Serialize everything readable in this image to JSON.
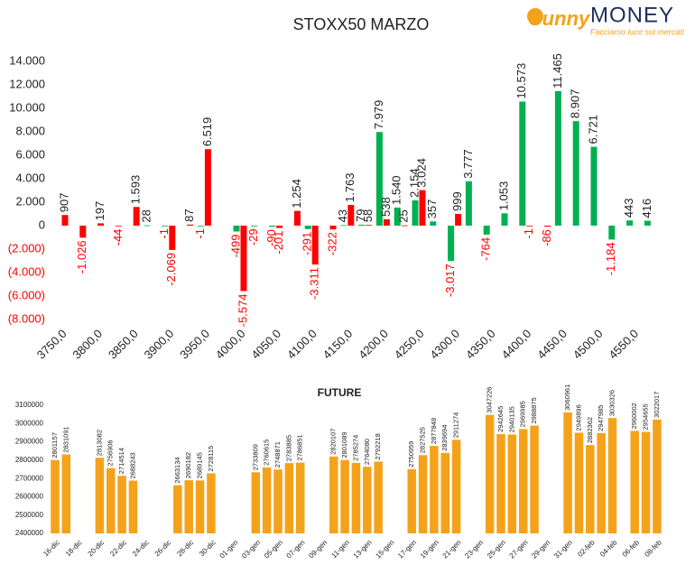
{
  "logo": {
    "brand": "Sunny",
    "name": "MONEY",
    "tagline": "Facciamo luce sui mercati"
  },
  "chart_data": [
    {
      "type": "bar",
      "title": "STOXX50 MARZO",
      "categories": [
        "3750,0",
        null,
        "3800,0",
        null,
        "3850,0",
        null,
        "3900,0",
        null,
        "3950,0",
        null,
        "4000,0",
        null,
        "4050,0",
        null,
        "4100,0",
        null,
        "4150,0",
        null,
        "4200,0",
        null,
        "4250,0",
        null,
        "4300,0",
        null,
        "4350,0",
        null,
        "4400,0",
        null,
        "4450,0",
        null,
        "4500,0",
        null,
        "4550,0",
        null
      ],
      "series": [
        {
          "name": "green",
          "color": "#00b050",
          "values": [
            null,
            null,
            null,
            null,
            null,
            28,
            -1,
            null,
            -1,
            null,
            -499,
            -29,
            -90,
            null,
            -291,
            null,
            43,
            79,
            7979,
            1540,
            2154,
            357,
            -3017,
            3777,
            -764,
            1053,
            10573,
            null,
            11465,
            8907,
            6721,
            -1184,
            443,
            416
          ],
          "value_labels": [
            null,
            null,
            null,
            null,
            null,
            "28",
            "-1",
            null,
            "-1",
            null,
            "-499",
            "-29",
            "-90",
            null,
            "-291",
            null,
            "43",
            "79",
            "7.979",
            "1.540",
            "2.154",
            "357",
            "-3.017",
            "3.777",
            "-764",
            "1.053",
            "10.573",
            null,
            "11.465",
            "8.907",
            "6.721",
            "-1.184",
            "443",
            "416"
          ]
        },
        {
          "name": "red",
          "color": "#ff0000",
          "values": [
            907,
            -1026,
            197,
            -44,
            1593,
            null,
            -2069,
            87,
            6519,
            null,
            -5574,
            null,
            -201,
            1254,
            -3311,
            -322,
            1763,
            58,
            538,
            25,
            3024,
            null,
            999,
            null,
            null,
            null,
            -1,
            -86,
            null,
            null,
            null,
            null,
            null,
            null
          ],
          "value_labels": [
            "907",
            "-1.026",
            "197",
            "-44",
            "1.593",
            null,
            "-2.069",
            "87",
            "6.519",
            null,
            "-5.574",
            null,
            "-201",
            "1.254",
            "-3.311",
            "-322",
            "1.763",
            "58",
            "538",
            "25",
            "3.024",
            null,
            "999",
            null,
            null,
            null,
            "-1",
            "-86",
            null,
            null,
            null,
            null,
            null,
            null
          ]
        }
      ],
      "ylim": [
        -8000,
        15000
      ],
      "yticks": [
        {
          "value": 14000,
          "label": "14.000"
        },
        {
          "value": 12000,
          "label": "12.000"
        },
        {
          "value": 10000,
          "label": "10.000"
        },
        {
          "value": 8000,
          "label": "8.000"
        },
        {
          "value": 6000,
          "label": "6.000"
        },
        {
          "value": 4000,
          "label": "4.000"
        },
        {
          "value": 2000,
          "label": "2.000"
        },
        0,
        {
          "value": -2000,
          "label": "(2.000)"
        },
        {
          "value": -4000,
          "label": "(4.000)"
        },
        {
          "value": -6000,
          "label": "(6.000)"
        },
        {
          "value": -8000,
          "label": "(8.000)"
        }
      ],
      "negative_color": "#ff0000"
    },
    {
      "type": "bar",
      "title": "FUTURE",
      "categories": [
        "16-dic",
        null,
        "18-dic",
        null,
        "20-dic",
        null,
        "22-dic",
        null,
        "24-dic",
        null,
        "26-dic",
        null,
        "28-dic",
        null,
        "30-dic",
        null,
        "01-gen",
        null,
        "03-gen",
        null,
        "05-gen",
        null,
        "07-gen",
        null,
        "09-gen",
        null,
        "11-gen",
        null,
        "13-gen",
        null,
        "15-gen",
        null,
        "17-gen",
        null,
        "19-gen",
        null,
        "21-gen",
        null,
        "23-gen",
        null,
        "25-gen",
        null,
        "27-gen",
        null,
        "29-gen",
        null,
        "31-gen",
        null,
        "02-feb",
        null,
        "04-feb",
        null,
        "06-feb",
        null,
        "08-feb"
      ],
      "series": [
        {
          "name": "FUTURE",
          "color": "#f5a21b",
          "values": [
            2801157,
            2831091,
            null,
            null,
            2813082,
            2756906,
            2714514,
            2688243,
            null,
            null,
            null,
            2663134,
            2690182,
            2689145,
            2728115,
            null,
            null,
            null,
            2733809,
            2760615,
            2748871,
            2783885,
            2786851,
            null,
            null,
            2820107,
            2801089,
            2785274,
            2764080,
            2792218,
            null,
            null,
            2750959,
            2827525,
            2877848,
            2839694,
            2911274,
            null,
            null,
            3047226,
            2942645,
            2940135,
            2969985,
            2988875,
            null,
            null,
            3060961,
            2949896,
            2882362,
            2947985,
            3030326,
            null,
            2960002,
            2954655,
            3022017
          ]
        }
      ],
      "ylim": [
        2400000,
        3100000
      ],
      "yticks": [
        3100000,
        3000000,
        2900000,
        2800000,
        2700000,
        2600000,
        2500000,
        2400000
      ]
    }
  ]
}
